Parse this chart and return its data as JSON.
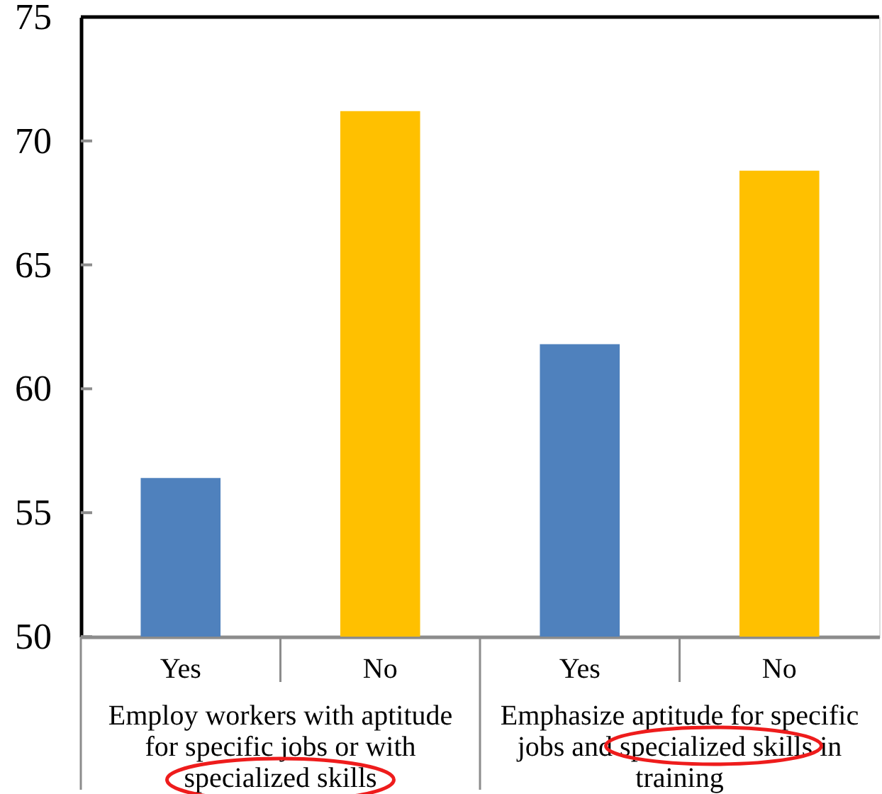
{
  "chart_data": {
    "type": "bar",
    "categories": [
      "Employ workers with aptitude for specific jobs or with specialized skills",
      "Emphasize aptitude for specific jobs and specialized skills in training"
    ],
    "series": [
      {
        "name": "Yes",
        "color": "#4f81bd",
        "values": [
          56.4,
          61.8
        ]
      },
      {
        "name": "No",
        "color": "#ffc000",
        "values": [
          71.2,
          68.8
        ]
      }
    ],
    "ylim": [
      50,
      75
    ],
    "yticks": [
      50,
      55,
      60,
      65,
      70,
      75
    ]
  }
}
